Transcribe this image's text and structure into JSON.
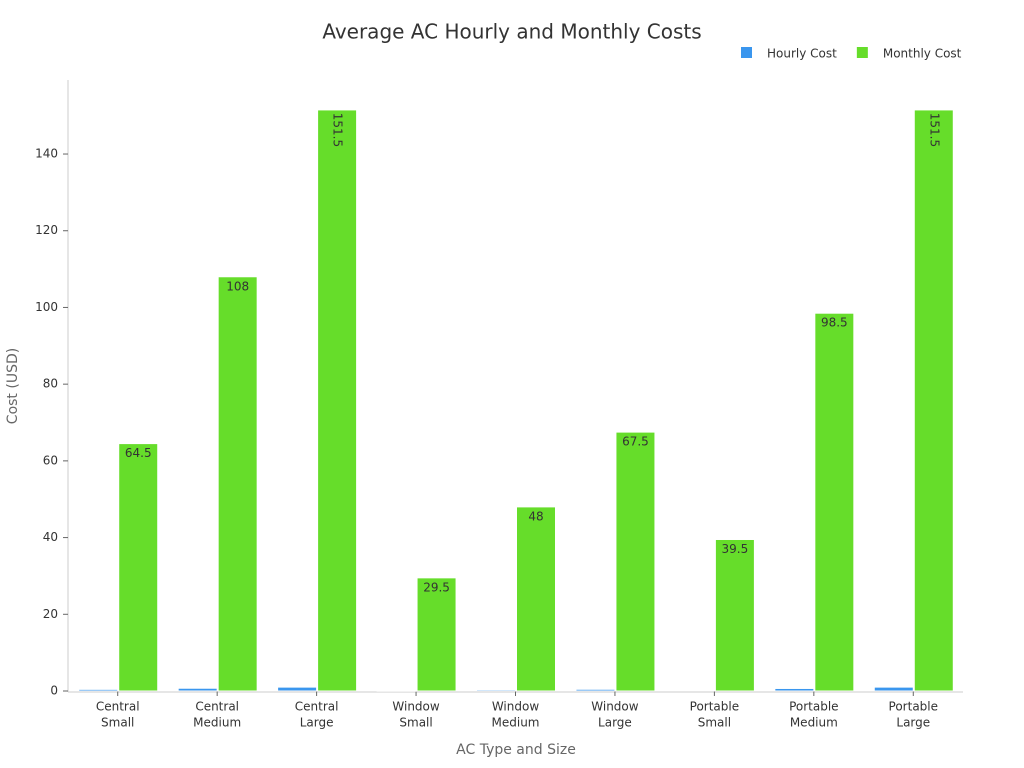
{
  "chart_data": {
    "type": "bar",
    "title": "Average AC Hourly and Monthly Costs",
    "x_label": "AC Type and Size",
    "y_label": "Cost (USD)",
    "categories": [
      [
        "Central",
        "Small"
      ],
      [
        "Central",
        "Medium"
      ],
      [
        "Central",
        "Large"
      ],
      [
        "Window",
        "Small"
      ],
      [
        "Window",
        "Medium"
      ],
      [
        "Window",
        "Large"
      ],
      [
        "Portable",
        "Small"
      ],
      [
        "Portable",
        "Medium"
      ],
      [
        "Portable",
        "Large"
      ]
    ],
    "series": [
      {
        "name": "Hourly Cost",
        "color": "#3a96ee",
        "values": [
          0.43,
          0.72,
          1.01,
          0.2,
          0.32,
          0.45,
          0.26,
          0.66,
          1.01
        ]
      },
      {
        "name": "Monthly Cost",
        "color": "#66dd2a",
        "values": [
          64.5,
          108,
          151.5,
          29.5,
          48,
          67.5,
          39.5,
          98.5,
          151.5
        ],
        "data_labels": true
      }
    ],
    "ylim": [
      0,
      159.3
    ],
    "yticks": [
      0,
      20,
      40,
      60,
      80,
      100,
      120,
      140
    ],
    "grid": false,
    "legend": "top-right"
  }
}
